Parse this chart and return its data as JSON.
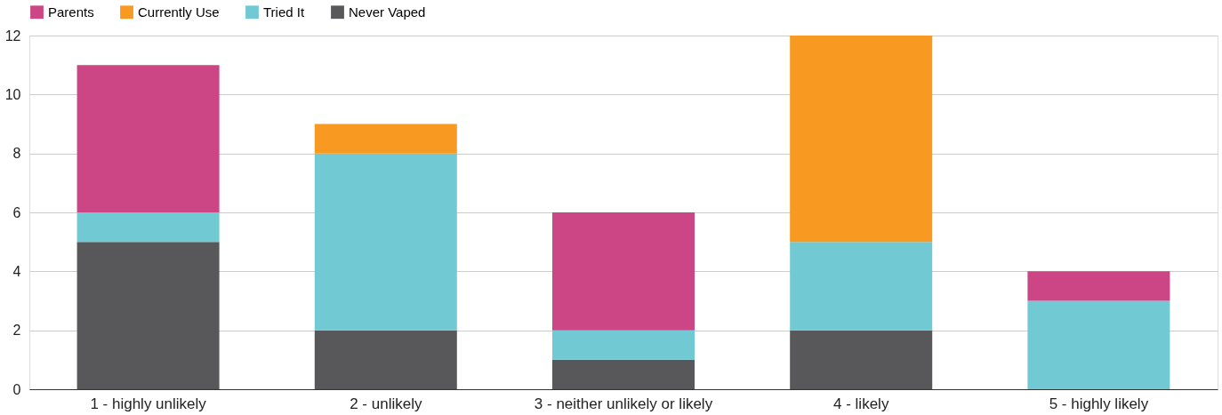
{
  "chart_data": {
    "type": "bar",
    "stacked": true,
    "categories": [
      "1 - highly unlikely",
      "2 - unlikely",
      "3 - neither unlikely or likely",
      "4 - likely",
      "5 - highly likely"
    ],
    "series": [
      {
        "name": "Never Vaped",
        "color": "#58585b",
        "values": [
          5,
          2,
          1,
          2,
          0
        ]
      },
      {
        "name": "Tried It",
        "color": "#71cad3",
        "values": [
          1,
          6,
          1,
          3,
          3
        ]
      },
      {
        "name": "Currently Use",
        "color": "#f89a22",
        "values": [
          0,
          1,
          0,
          7,
          0
        ]
      },
      {
        "name": "Parents",
        "color": "#cc4585",
        "values": [
          5,
          0,
          4,
          0,
          1
        ]
      }
    ],
    "ylim": [
      0,
      12
    ],
    "yticks": [
      0,
      2,
      4,
      6,
      8,
      10,
      12
    ],
    "grid": "y",
    "legend": "top"
  }
}
